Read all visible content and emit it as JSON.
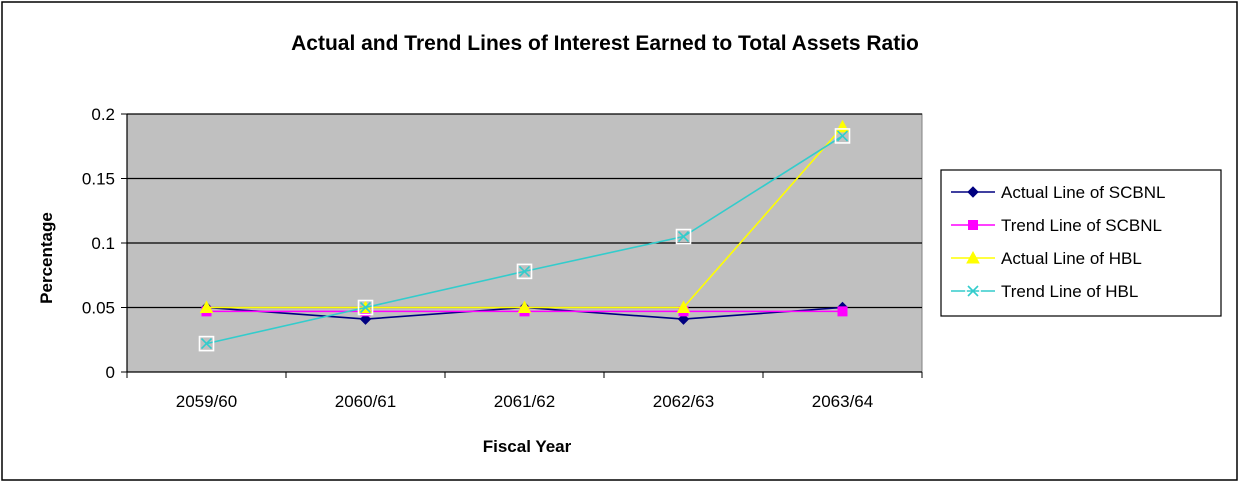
{
  "chart_data": {
    "type": "line",
    "title": "Actual and Trend Lines of Interest Earned to Total Assets Ratio",
    "xlabel": "Fiscal Year",
    "ylabel": "Percentage",
    "categories": [
      "2059/60",
      "2060/61",
      "2061/62",
      "2062/63",
      "2063/64"
    ],
    "ylim": [
      0,
      0.2
    ],
    "yticks": [
      "0",
      "0.05",
      "0.1",
      "0.15",
      "0.2"
    ],
    "grid": true,
    "legend_position": "right",
    "colors": {
      "plot_background": "#c0c0c0",
      "grid": "#000000",
      "frame": "#000000"
    },
    "series": [
      {
        "name": "Actual Line of SCBNL",
        "values": [
          0.05,
          0.041,
          0.05,
          0.041,
          0.05
        ],
        "color": "#000080",
        "marker": "diamond"
      },
      {
        "name": "Trend Line of SCBNL",
        "values": [
          0.047,
          0.047,
          0.047,
          0.047,
          0.047
        ],
        "color": "#ff00ff",
        "marker": "square"
      },
      {
        "name": "Actual Line of HBL",
        "values": [
          0.05,
          0.05,
          0.05,
          0.05,
          0.19
        ],
        "color": "#ffff00",
        "marker": "triangle"
      },
      {
        "name": "Trend Line of HBL",
        "values": [
          0.022,
          0.05,
          0.078,
          0.105,
          0.183
        ],
        "color": "#33cccc",
        "marker": "x-box"
      }
    ]
  }
}
